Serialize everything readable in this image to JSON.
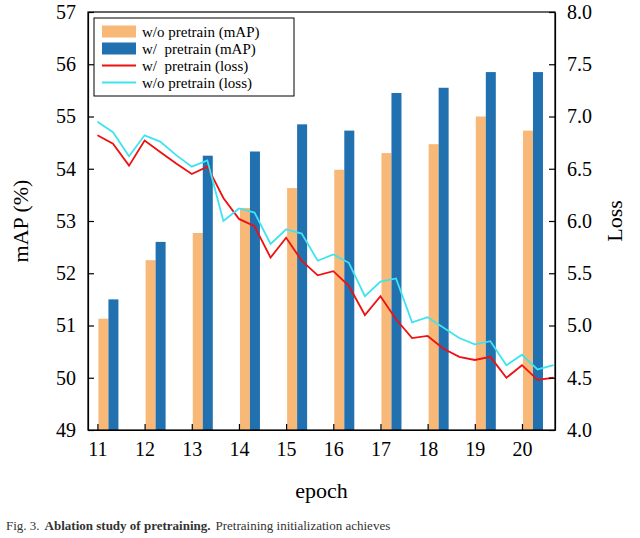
{
  "chart_data": {
    "type": "bar",
    "x_label": "epoch",
    "y_label": "mAP (%)",
    "y2_label": "Loss",
    "caption": [
      "Fig. 3.",
      "Ablation study of pretraining.",
      "Pretraining initialization achieves"
    ],
    "x": [
      11,
      12,
      13,
      14,
      15,
      16,
      17,
      18,
      19,
      20
    ],
    "xlim": [
      10.8,
      20.7
    ],
    "xticks": [
      11,
      12,
      13,
      14,
      15,
      16,
      17,
      18,
      19,
      20
    ],
    "ylim": [
      49,
      57
    ],
    "yticks": [
      49,
      50,
      51,
      52,
      53,
      54,
      55,
      56,
      57
    ],
    "y2lim": [
      4,
      8
    ],
    "y2ticks": [
      {
        "value": 4,
        "label": "4.0"
      },
      4.5,
      {
        "value": 5,
        "label": "5.0"
      },
      5.5,
      {
        "value": 6,
        "label": "6.0"
      },
      6.5,
      {
        "value": 7,
        "label": "7.0"
      },
      7.5,
      {
        "value": 8,
        "label": "8.0"
      }
    ],
    "grid": false,
    "legend": "upper left",
    "series": [
      {
        "name": "w/o pretrain (mAP)",
        "type": "bar",
        "color": "#f7b878",
        "values": [
          51.13,
          52.25,
          52.77,
          53.25,
          53.63,
          53.98,
          54.3,
          54.47,
          55.0,
          54.73
        ]
      },
      {
        "name": "w/  pretrain (mAP)",
        "type": "bar",
        "color": "#2170b0",
        "values": [
          51.5,
          52.6,
          54.25,
          54.33,
          54.85,
          54.73,
          55.45,
          55.55,
          55.85,
          55.85
        ]
      },
      {
        "name": "w/  pretrain (loss)",
        "type": "line",
        "axis": "y2",
        "color": "#ee1111",
        "x": [
          11,
          11.33,
          11.67,
          12,
          12.33,
          12.67,
          13,
          13.33,
          13.67,
          14,
          14.33,
          14.67,
          15,
          15.33,
          15.67,
          16,
          16.33,
          16.67,
          17,
          17.33,
          17.67,
          18,
          18.33,
          18.67,
          19,
          19.33,
          19.67,
          20,
          20.33,
          20.67
        ],
        "values": [
          6.82,
          6.74,
          6.53,
          6.77,
          6.66,
          6.55,
          6.45,
          6.52,
          6.22,
          6.02,
          5.95,
          5.65,
          5.84,
          5.62,
          5.48,
          5.52,
          5.38,
          5.1,
          5.28,
          5.06,
          4.88,
          4.9,
          4.78,
          4.7,
          4.67,
          4.7,
          4.5,
          4.62,
          4.48,
          4.5
        ]
      },
      {
        "name": "w/o pretrain (loss)",
        "type": "line",
        "axis": "y2",
        "color": "#3fe3f0",
        "x": [
          11,
          11.33,
          11.67,
          12,
          12.33,
          12.67,
          13,
          13.33,
          13.67,
          14,
          14.33,
          14.67,
          15,
          15.33,
          15.67,
          16,
          16.33,
          16.67,
          17,
          17.33,
          17.67,
          18,
          18.33,
          18.67,
          19,
          19.33,
          19.67,
          20,
          20.33,
          20.67
        ],
        "values": [
          6.95,
          6.85,
          6.62,
          6.82,
          6.76,
          6.63,
          6.52,
          6.58,
          6.0,
          6.12,
          6.08,
          5.78,
          5.92,
          5.88,
          5.62,
          5.68,
          5.6,
          5.28,
          5.42,
          5.45,
          5.03,
          5.08,
          4.98,
          4.88,
          4.82,
          4.85,
          4.62,
          4.72,
          4.58,
          4.62
        ]
      }
    ]
  }
}
